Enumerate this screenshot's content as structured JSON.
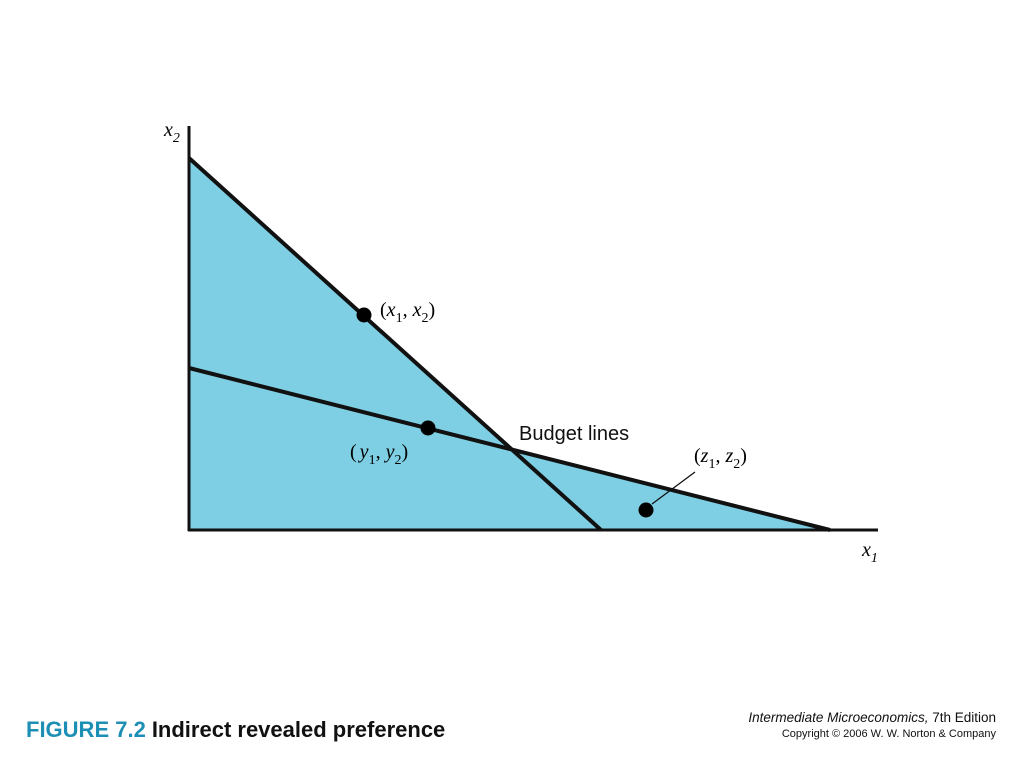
{
  "diagram": {
    "axis_x_label": "x",
    "axis_x_sub": "1",
    "axis_y_label": "x",
    "axis_y_sub": "2",
    "fill_color": "#7ecfe3",
    "line_color": "#111111",
    "budget_lines_label": "Budget lines",
    "points": {
      "x": {
        "open": "(",
        "var1": "x",
        "sub1": "1",
        "sep": ", ",
        "var2": "x",
        "sub2": "2",
        "close": ")"
      },
      "y": {
        "open": "(",
        "var1": "y",
        "sub1": "1",
        "sep": ", ",
        "var2": "y",
        "sub2": "2",
        "close": ")"
      },
      "z": {
        "open": "(",
        "var1": "z",
        "sub1": "1",
        "sep": ", ",
        "var2": "z",
        "sub2": "2",
        "close": ")"
      }
    }
  },
  "caption": {
    "figure_number": "FIGURE 7.2",
    "title": "Indirect revealed preference",
    "number_color": "#1d8fb5"
  },
  "credit": {
    "book_title": "Intermediate Microeconomics,",
    "edition": " 7th Edition",
    "copyright": "Copyright © 2006 W. W. Norton & Company"
  }
}
